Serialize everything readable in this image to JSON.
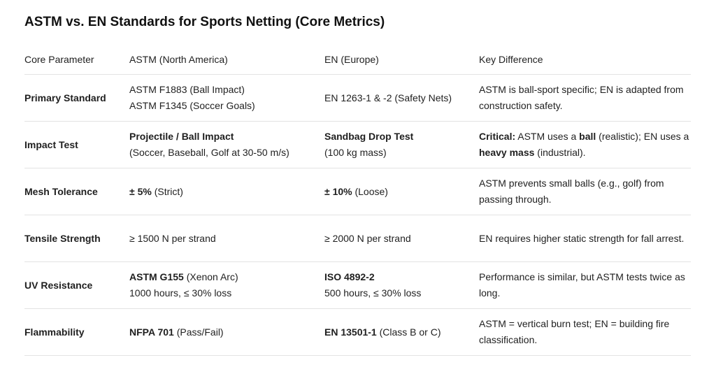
{
  "title": "ASTM vs. EN Standards for Sports Netting (Core Metrics)",
  "table": {
    "header": [
      "Core Parameter",
      "ASTM (North America)",
      "EN (Europe)",
      "Key Difference"
    ],
    "rows": [
      [
        "Primary Standard",
        [
          [
            "ASTM F1883 (Ball Impact)"
          ],
          [
            "ASTM F1345 (Soccer Goals)"
          ]
        ],
        [
          [
            "EN 1263-1 & -2 (Safety Nets)"
          ]
        ],
        [
          [
            "ASTM is ball-sport specific; EN is adapted from construction safety."
          ]
        ]
      ],
      [
        "Impact Test",
        [
          [
            {
              "text": "Projectile / Ball Impact",
              "bold": true
            }
          ],
          [
            "(Soccer, Baseball, Golf at 30-50 m/s)"
          ]
        ],
        [
          [
            {
              "text": "Sandbag Drop Test",
              "bold": true
            }
          ],
          [
            "(100 kg mass)"
          ]
        ],
        [
          [
            {
              "text": "Critical:",
              "bold": true
            },
            " ASTM uses a ",
            {
              "text": "ball",
              "bold": true
            },
            " (realistic); EN uses a ",
            {
              "text": "heavy mass",
              "bold": true
            },
            " (industrial)."
          ]
        ]
      ],
      [
        "Mesh Tolerance",
        [
          [
            {
              "text": "± 5%",
              "bold": true
            },
            " (Strict)"
          ]
        ],
        [
          [
            {
              "text": "± 10%",
              "bold": true
            },
            " (Loose)"
          ]
        ],
        [
          [
            "ASTM prevents small balls (e.g., golf) from passing through."
          ]
        ]
      ],
      [
        "Tensile Strength",
        [
          [
            "≥ 1500 N per strand"
          ]
        ],
        [
          [
            "≥ 2000 N per strand"
          ]
        ],
        [
          [
            "EN requires higher static strength for fall arrest."
          ]
        ]
      ],
      [
        "UV Resistance",
        [
          [
            {
              "text": "ASTM G155",
              "bold": true
            },
            " (Xenon Arc)"
          ],
          [
            "1000 hours, ≤ 30% loss"
          ]
        ],
        [
          [
            {
              "text": "ISO 4892-2",
              "bold": true
            }
          ],
          [
            "500 hours, ≤ 30% loss"
          ]
        ],
        [
          [
            "Performance is similar, but ASTM tests twice as long."
          ]
        ]
      ],
      [
        "Flammability",
        [
          [
            {
              "text": "NFPA 701",
              "bold": true
            },
            " (Pass/Fail)"
          ]
        ],
        [
          [
            {
              "text": "EN 13501-1",
              "bold": true
            },
            " (Class B or C)"
          ]
        ],
        [
          [
            "ASTM = vertical burn test; EN = building fire classification."
          ]
        ]
      ]
    ]
  }
}
